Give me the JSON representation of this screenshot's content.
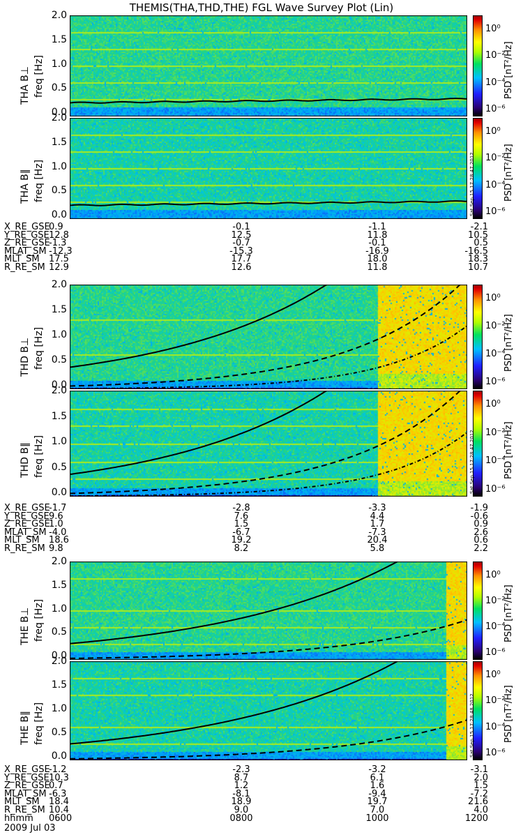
{
  "title": "THEMIS(THA,THD,THE) FGL Wave Survey Plot (Lin)",
  "colorbar": {
    "label": "PSD [nT²/Hz]",
    "ticks": [
      "10⁰",
      "10⁻²",
      "10⁻⁴",
      "10⁻⁶"
    ]
  },
  "yticks": [
    "2.0",
    "1.5",
    "1.0",
    "0.5",
    "0.0"
  ],
  "ylabel_unit": "freq [Hz]",
  "panels": [
    {
      "label": "THA B⊥",
      "stamp": "Sat Sep 15 17:28:47 2012"
    },
    {
      "label": "THA B∥",
      "stamp": "Sat Sep 15 17:28:47 2012"
    },
    {
      "label": "THD B⊥",
      "stamp": "Sat Sep 15 17:28:47 2012"
    },
    {
      "label": "THD B∥",
      "stamp": "Sat Sep 15 17:28:47 2012"
    },
    {
      "label": "THE B⊥",
      "stamp": "Sat Sep 15 17:28:48 2012"
    },
    {
      "label": "THE B∥",
      "stamp": "Sat Sep 15 17:28:48 2012"
    }
  ],
  "ephemeris": [
    {
      "rows": [
        [
          "X_RE_GSE",
          "0.9",
          "-0.1",
          "-1.1",
          "-2.1"
        ],
        [
          "Y_RE_GSE",
          "12.8",
          "12.5",
          "11.8",
          "10.5"
        ],
        [
          "Z_RE_GSE",
          "-1.3",
          "-0.7",
          "-0.1",
          "0.5"
        ],
        [
          "MLAT_SM",
          "-12.3",
          "-15.3",
          "-16.9",
          "-16.5"
        ],
        [
          "MLT_SM",
          "17.5",
          "17.7",
          "18.0",
          "18.3"
        ],
        [
          "R_RE_SM",
          "12.9",
          "12.6",
          "11.8",
          "10.7"
        ]
      ]
    },
    {
      "rows": [
        [
          "X_RE_GSE",
          "-1.7",
          "-2.8",
          "-3.3",
          "-1.9"
        ],
        [
          "Y_RE_GSE",
          "9.6",
          "7.6",
          "4.4",
          "-0.6"
        ],
        [
          "Z_RE_GSE",
          "1.0",
          "1.5",
          "1.7",
          "0.9"
        ],
        [
          "MLAT_SM",
          "-4.0",
          "-6.7",
          "-7.3",
          "2.6"
        ],
        [
          "MLT_SM",
          "18.6",
          "19.2",
          "20.4",
          "0.6"
        ],
        [
          "R_RE_SM",
          "9.8",
          "8.2",
          "5.8",
          "2.2"
        ]
      ]
    },
    {
      "rows": [
        [
          "X_RE_GSE",
          "-1.2",
          "-2.3",
          "-3.2",
          "-3.1"
        ],
        [
          "Y_RE_GSE",
          "10.3",
          "8.7",
          "6.1",
          "2.0"
        ],
        [
          "Z_RE_GSE",
          "0.7",
          "1.2",
          "1.6",
          "1.5"
        ],
        [
          "MLAT_SM",
          "-6.3",
          "-8.1",
          "-9.4",
          "-7.2"
        ],
        [
          "MLT_SM",
          "18.4",
          "18.9",
          "19.7",
          "21.6"
        ],
        [
          "R_RE_SM",
          "10.4",
          "9.0",
          "7.0",
          "4.0"
        ],
        [
          "hhmm",
          "0600",
          "0800",
          "1000",
          "1200"
        ]
      ]
    }
  ],
  "date": "2009 Jul 03",
  "chart_data": {
    "type": "heatmap",
    "title": "THEMIS(THA,THD,THE) FGL Wave Survey Plot (Lin)",
    "xlabel": "hhmm",
    "ylabel": "freq [Hz]",
    "ylim": [
      0,
      2.0
    ],
    "x_ticks": [
      "0600",
      "0800",
      "1000",
      "1200"
    ],
    "colorbar_label": "PSD [nT²/Hz]",
    "colorbar_ticks": [
      "10⁰",
      "10⁻²",
      "10⁻⁴",
      "10⁻⁶"
    ],
    "colors": {
      "background": "#1ec0c8",
      "noise_band": "#2030d0",
      "harmonic": "#a0e040",
      "intense": "#f0c020"
    },
    "series_panels": [
      "THA B⊥",
      "THA B∥",
      "THD B⊥",
      "THD B∥",
      "THE B⊥",
      "THE B∥"
    ]
  }
}
